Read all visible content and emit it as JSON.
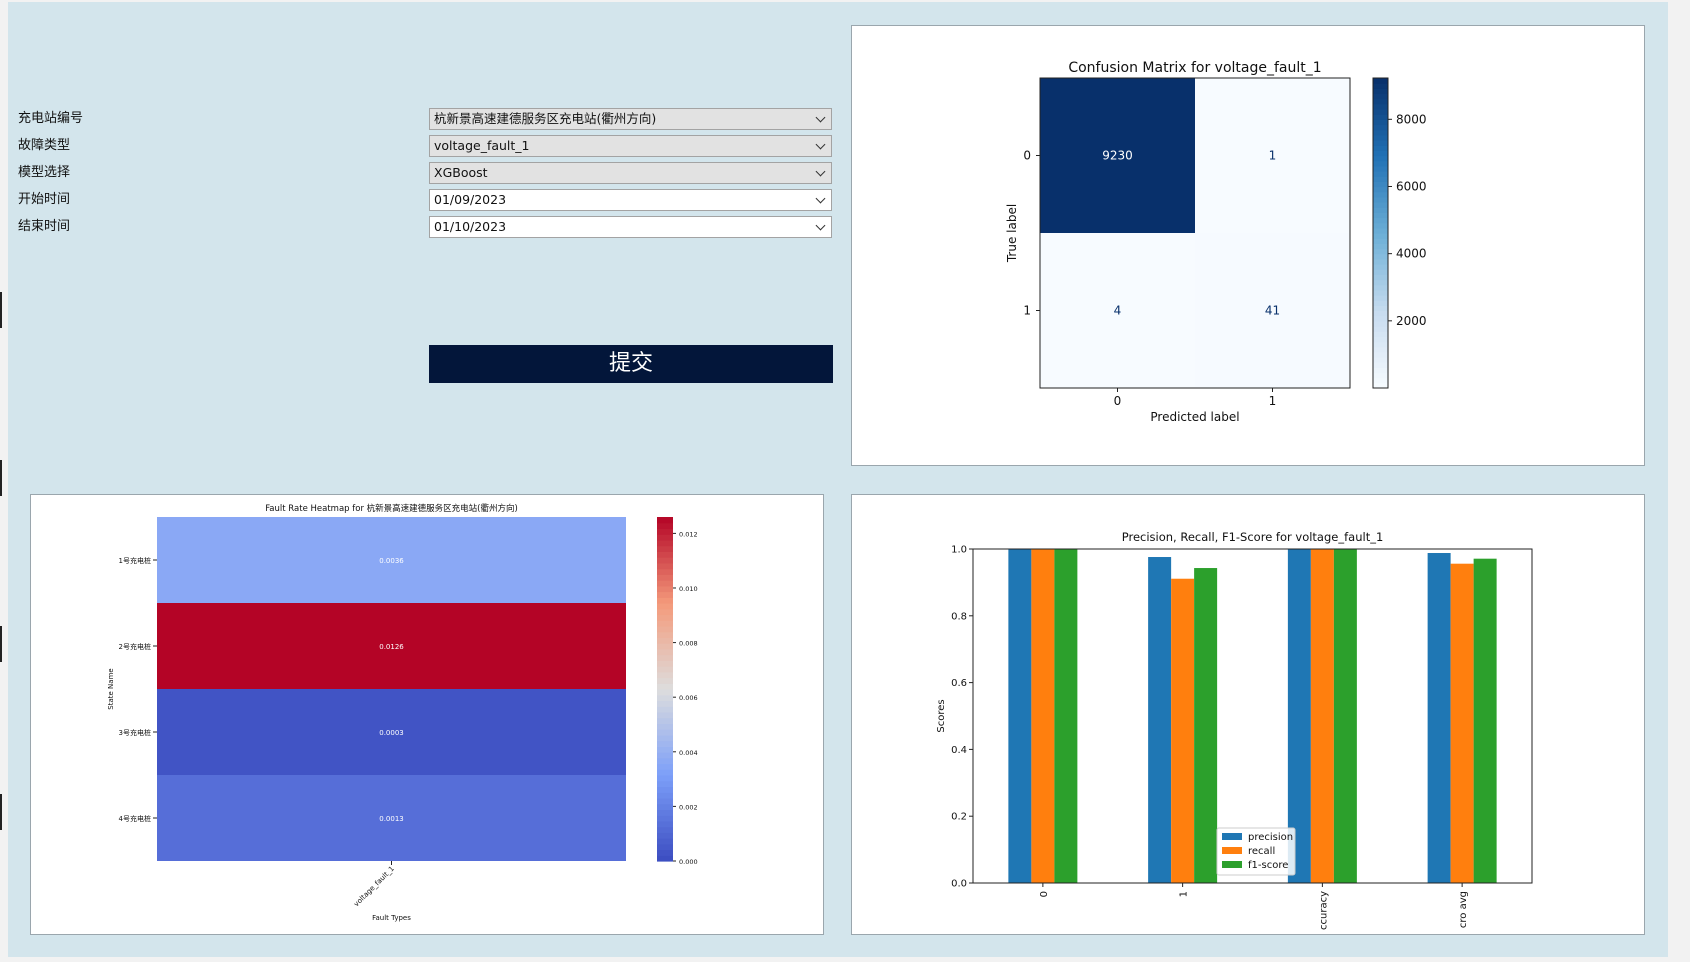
{
  "form": {
    "station": {
      "label": "充电站编号",
      "value": "杭新景高速建德服务区充电站(衢州方向)"
    },
    "fault_type": {
      "label": "故障类型",
      "value": "voltage_fault_1"
    },
    "model": {
      "label": "模型选择",
      "value": "XGBoost"
    },
    "start": {
      "label": "开始时间",
      "value": "01/09/2023"
    },
    "end": {
      "label": "结束时间",
      "value": "01/10/2023"
    },
    "submit_label": "提交"
  },
  "colors": {
    "window_bg": "#d3e5ec",
    "submit_bg": "#03163a",
    "bar_precision": "#1f77b4",
    "bar_recall": "#ff7f0e",
    "bar_f1": "#2ca02c"
  },
  "chart_data": [
    {
      "type": "heatmap",
      "title": "Confusion Matrix for voltage_fault_1",
      "xlabel": "Predicted label",
      "ylabel": "True label",
      "x_ticks": [
        "0",
        "1"
      ],
      "y_ticks": [
        "0",
        "1"
      ],
      "matrix": [
        [
          9230,
          1
        ],
        [
          4,
          41
        ]
      ],
      "colormap": "Blues",
      "colorbar_ticks": [
        2000,
        4000,
        6000,
        8000
      ],
      "colorbar_range": [
        0,
        9230
      ]
    },
    {
      "type": "heatmap",
      "title": "Fault Rate Heatmap for 杭新景高速建德服务区充电站(衢州方向)",
      "xlabel": "Fault Types",
      "ylabel": "State Name",
      "x_ticks": [
        "voltage_fault_1"
      ],
      "y_ticks": [
        "1号充电桩",
        "2号充电桩",
        "3号充电桩",
        "4号充电桩"
      ],
      "values": [
        0.0036,
        0.0126,
        0.0003,
        0.0013
      ],
      "value_labels": [
        "0.0036",
        "0.0126",
        "0.0003",
        "0.0013"
      ],
      "colormap": "coolwarm",
      "colorbar_ticks": [
        "0.000",
        "0.002",
        "0.004",
        "0.006",
        "0.008",
        "0.010",
        "0.012"
      ],
      "colorbar_range": [
        0,
        0.0126
      ]
    },
    {
      "type": "bar",
      "title": "Precision, Recall, F1-Score for voltage_fault_1",
      "xlabel": "",
      "ylabel": "Scores",
      "categories": [
        "0",
        "1",
        "ccuracy",
        "cro avg"
      ],
      "series": [
        {
          "name": "precision",
          "values": [
            1.0,
            0.976,
            1.0,
            0.988
          ]
        },
        {
          "name": "recall",
          "values": [
            1.0,
            0.911,
            1.0,
            0.956
          ]
        },
        {
          "name": "f1-score",
          "values": [
            1.0,
            0.943,
            1.0,
            0.971
          ]
        }
      ],
      "ylim": [
        0,
        1.0
      ],
      "y_ticks": [
        "0.0",
        "0.2",
        "0.4",
        "0.6",
        "0.8",
        "1.0"
      ],
      "legend_position": "bottom-center"
    }
  ]
}
